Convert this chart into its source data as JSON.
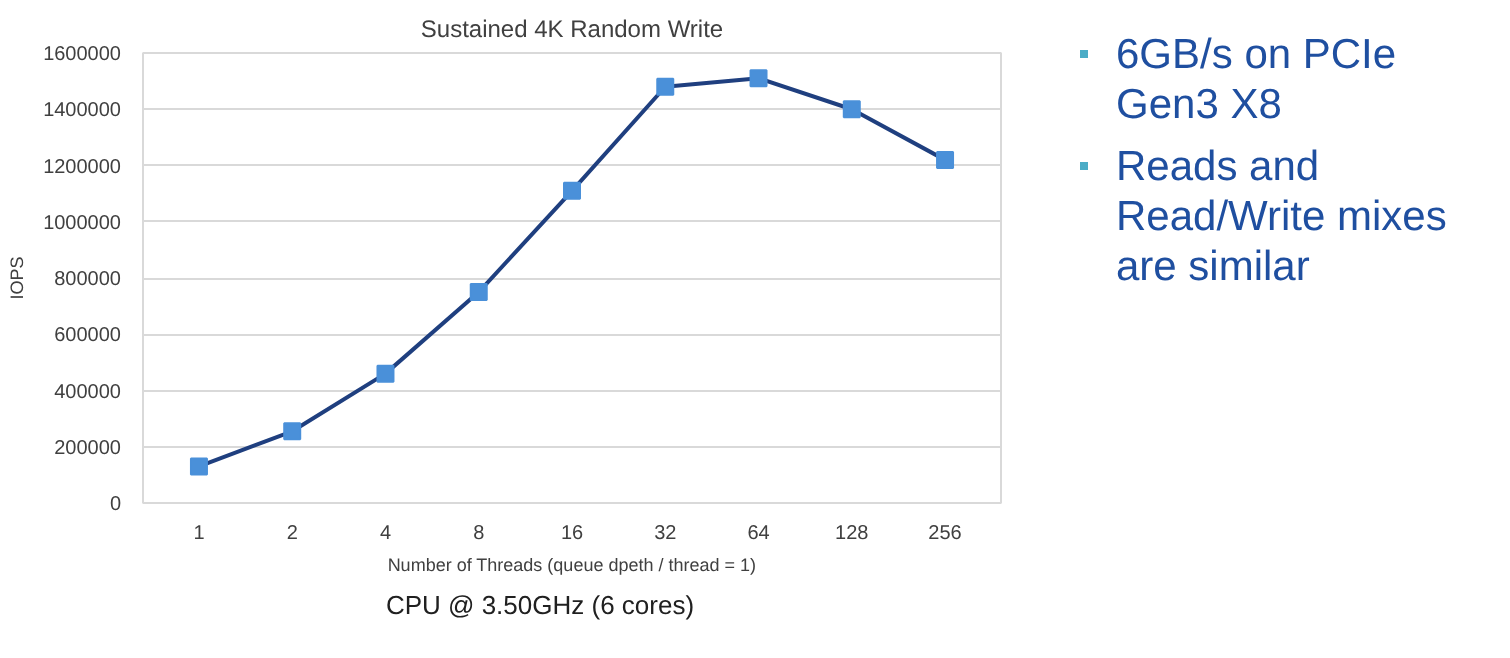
{
  "chart_data": {
    "type": "line",
    "title": "Sustained 4K Random Write",
    "xlabel": "Number of Threads (queue dpeth / thread = 1)",
    "ylabel": "IOPS",
    "categories": [
      "1",
      "2",
      "4",
      "8",
      "16",
      "32",
      "64",
      "128",
      "256"
    ],
    "series": [
      {
        "color": "#1f3f7f",
        "values": [
          130000,
          255000,
          460000,
          750000,
          1110000,
          1480000,
          1510000,
          1400000,
          1220000
        ]
      }
    ],
    "marker": "square",
    "line_style": "solid",
    "grid": "y",
    "ylim": [
      0,
      1600000
    ],
    "yticks": [
      0,
      200000,
      400000,
      600000,
      800000,
      1000000,
      1200000,
      1400000,
      1600000
    ],
    "annotations": [
      "6GB/s on PCIe Gen3 X8",
      "Reads and Read/Write mixes are similar",
      "CPU @ 3.50GHz (6 cores)"
    ]
  }
}
